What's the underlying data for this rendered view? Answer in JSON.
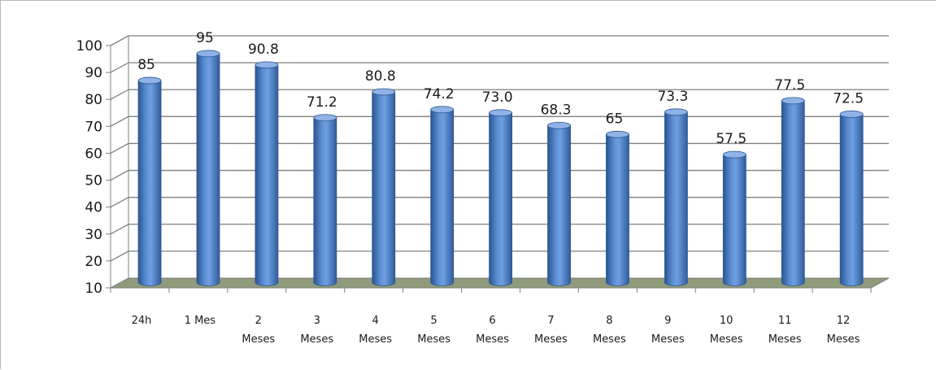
{
  "chart_data": {
    "type": "bar",
    "style": "3d-cylinder",
    "categories": [
      [
        "24h"
      ],
      [
        "1 Mes"
      ],
      [
        "2",
        "Meses"
      ],
      [
        "3",
        "Meses"
      ],
      [
        "4",
        "Meses"
      ],
      [
        "5",
        "Meses"
      ],
      [
        "6",
        "Meses"
      ],
      [
        "7",
        "Meses"
      ],
      [
        "8",
        "Meses"
      ],
      [
        "9",
        "Meses"
      ],
      [
        "10",
        "Meses"
      ],
      [
        "11",
        "Meses"
      ],
      [
        "12",
        "Meses"
      ]
    ],
    "values": [
      85,
      95,
      90.8,
      71.2,
      80.8,
      74.2,
      73.0,
      68.3,
      65,
      73.3,
      57.5,
      77.5,
      72.5
    ],
    "data_labels": [
      "85",
      "95",
      "90.8",
      "71.2",
      "80.8",
      "74.2",
      "73.0",
      "68.3",
      "65",
      "73.3",
      "57.5",
      "77.5",
      "72.5"
    ],
    "ylim": [
      10,
      100
    ],
    "yticks": [
      10,
      20,
      30,
      40,
      50,
      60,
      70,
      80,
      90,
      100
    ],
    "grid": true,
    "legend": "none",
    "colors": {
      "bar": "#4a7ebf",
      "bar_dark": "#2b5591",
      "bar_light": "#8fb3e6",
      "floor": "#8f9b7b",
      "grid": "#7f7f7f"
    }
  }
}
